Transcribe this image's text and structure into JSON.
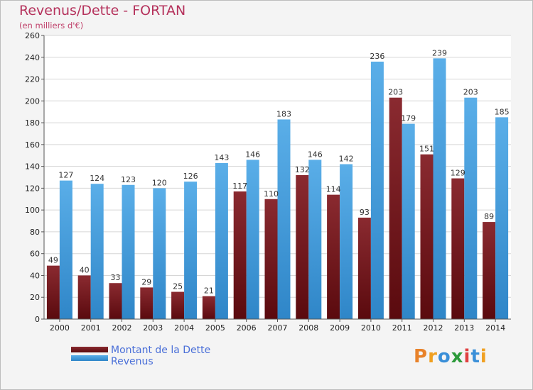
{
  "title": "Revenus/Dette - FORTAN",
  "subtitle": "(en milliers d'€)",
  "logo": "Proxiti",
  "colors": {
    "title": "#b5325c",
    "debt_series": "#7a1a20",
    "revenue_series": "#4a9fe0",
    "legend_text": "#4a6fd8"
  },
  "legend": [
    {
      "label": "Montant de la Dette",
      "color": "#6a1518"
    },
    {
      "label": "Revenus",
      "color": "#4aa0e2"
    }
  ],
  "chart_data": {
    "type": "bar",
    "title": "Revenus/Dette - FORTAN",
    "subtitle": "(en milliers d'€)",
    "xlabel": "",
    "ylabel": "",
    "categories": [
      "2000",
      "2001",
      "2002",
      "2003",
      "2004",
      "2005",
      "2006",
      "2007",
      "2008",
      "2009",
      "2010",
      "2011",
      "2012",
      "2013",
      "2014"
    ],
    "series": [
      {
        "name": "Montant de la Dette",
        "values": [
          49,
          40,
          33,
          29,
          25,
          21,
          117,
          110,
          132,
          114,
          93,
          203,
          151,
          129,
          89
        ]
      },
      {
        "name": "Revenus",
        "values": [
          127,
          124,
          123,
          120,
          126,
          143,
          146,
          183,
          146,
          142,
          236,
          179,
          239,
          203,
          185
        ]
      }
    ],
    "data_labels": [
      [
        "49",
        "40",
        "33",
        "29",
        "25",
        "21",
        "117",
        "110",
        "132",
        "114",
        "93",
        "203",
        "151",
        "129",
        "89"
      ],
      [
        "127",
        "124",
        "123",
        "120",
        "126",
        "143",
        "146",
        "183",
        "146",
        "142",
        "236",
        "179",
        "239",
        "203",
        "185"
      ]
    ],
    "ylim": [
      0,
      260
    ],
    "yticks": [
      0,
      20,
      40,
      60,
      80,
      100,
      120,
      140,
      160,
      180,
      200,
      220,
      240,
      260
    ],
    "grid": true,
    "legend_position": "bottom-left"
  }
}
